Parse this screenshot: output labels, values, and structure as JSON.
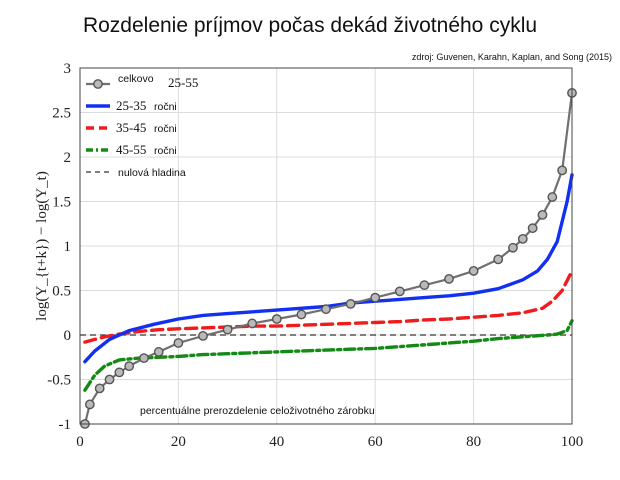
{
  "header": {
    "title": "Rozdelenie príjmov počas dekád životného cyklu",
    "source": "zdroj: Guvenen, Karahn, Kaplan, and Song (2015)"
  },
  "chart_data": {
    "type": "line",
    "title": "Rozdelenie príjmov počas dekád životného cyklu",
    "xlabel": "percentuálne prerozdelenie celoživotného zárobku",
    "ylabel": "log(Y_{t+k}) − log(Y_t)",
    "xlim": [
      0,
      100
    ],
    "ylim": [
      -1,
      3
    ],
    "xticks": [
      0,
      20,
      40,
      60,
      80,
      100
    ],
    "yticks": [
      -1,
      -0.5,
      0,
      0.5,
      1,
      1.5,
      2,
      2.5,
      3
    ],
    "ytick_labels": [
      "-1",
      "-0.5",
      "0",
      "0.5",
      "1",
      "1.5",
      "2",
      "2.5",
      "3"
    ],
    "grid": true,
    "legend_position": "top-left",
    "reference_line": {
      "name": "nulová hladina",
      "value": 0,
      "style": "dashed",
      "color": "#333333"
    },
    "series": [
      {
        "name": "celkovo 25-55",
        "legend_text": "celkovo",
        "legend_math": "25-55",
        "color": "#707070",
        "style": "solid-markers",
        "x": [
          1,
          2,
          4,
          6,
          8,
          10,
          13,
          16,
          20,
          25,
          30,
          35,
          40,
          45,
          50,
          55,
          60,
          65,
          70,
          75,
          80,
          85,
          88,
          90,
          92,
          94,
          96,
          98,
          100
        ],
        "y": [
          -1.0,
          -0.78,
          -0.6,
          -0.5,
          -0.42,
          -0.35,
          -0.26,
          -0.19,
          -0.09,
          -0.01,
          0.06,
          0.13,
          0.18,
          0.23,
          0.29,
          0.35,
          0.42,
          0.49,
          0.56,
          0.63,
          0.72,
          0.85,
          0.98,
          1.08,
          1.2,
          1.35,
          1.55,
          1.85,
          2.72
        ]
      },
      {
        "name": "25-35 ročni",
        "legend_math": "25-35",
        "legend_text": "ročni",
        "color": "#1230f0",
        "style": "solid",
        "x": [
          1,
          3,
          6,
          10,
          15,
          20,
          25,
          30,
          40,
          50,
          55,
          60,
          65,
          70,
          75,
          80,
          85,
          90,
          93,
          95,
          97,
          99,
          100
        ],
        "y": [
          -0.3,
          -0.18,
          -0.05,
          0.05,
          0.12,
          0.18,
          0.22,
          0.24,
          0.28,
          0.32,
          0.36,
          0.38,
          0.4,
          0.42,
          0.44,
          0.47,
          0.52,
          0.62,
          0.72,
          0.85,
          1.05,
          1.5,
          1.8
        ]
      },
      {
        "name": "35-45 ročni",
        "legend_math": "35-45",
        "legend_text": "ročni",
        "color": "#ee1c1c",
        "style": "dashed",
        "x": [
          1,
          3,
          5,
          8,
          12,
          16,
          20,
          25,
          30,
          35,
          40,
          45,
          50,
          55,
          60,
          65,
          70,
          75,
          80,
          85,
          90,
          94,
          96,
          98,
          100
        ],
        "y": [
          -0.08,
          -0.05,
          -0.02,
          0.01,
          0.04,
          0.06,
          0.07,
          0.08,
          0.09,
          0.1,
          0.1,
          0.11,
          0.12,
          0.13,
          0.14,
          0.15,
          0.17,
          0.18,
          0.2,
          0.22,
          0.25,
          0.3,
          0.38,
          0.5,
          0.72
        ]
      },
      {
        "name": "45-55 ročni",
        "legend_math": "45-55",
        "legend_text": "ročni",
        "color": "#138a13",
        "style": "dash-dot",
        "x": [
          1,
          3,
          5,
          8,
          12,
          16,
          20,
          25,
          30,
          35,
          40,
          45,
          50,
          55,
          60,
          65,
          70,
          75,
          80,
          85,
          90,
          95,
          97,
          99,
          100
        ],
        "y": [
          -0.62,
          -0.45,
          -0.35,
          -0.28,
          -0.26,
          -0.25,
          -0.24,
          -0.22,
          -0.21,
          -0.2,
          -0.19,
          -0.18,
          -0.17,
          -0.16,
          -0.15,
          -0.13,
          -0.11,
          -0.09,
          -0.07,
          -0.04,
          -0.02,
          0.0,
          0.01,
          0.05,
          0.16
        ]
      }
    ]
  }
}
